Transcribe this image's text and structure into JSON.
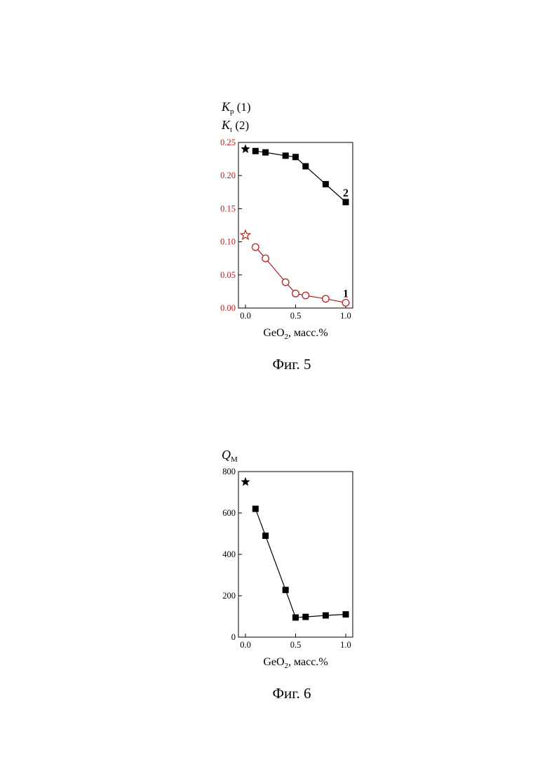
{
  "chart_data": [
    {
      "type": "line",
      "figure_caption": "Фиг. 5",
      "ylabel_lines": [
        {
          "sym": "K",
          "sub": "p",
          "suffix": " (1)"
        },
        {
          "sym": "K",
          "sub": "t",
          "suffix": " (2)"
        }
      ],
      "xlabel": {
        "pre": "GeO",
        "sub": "2",
        "post": ", масс.%"
      },
      "xlim": [
        -0.07,
        1.07
      ],
      "ylim": [
        0,
        0.25
      ],
      "xticks": [
        "0.0",
        "0.5",
        "1.0"
      ],
      "xtick_values": [
        0,
        0.5,
        1.0
      ],
      "yticks": [
        "0.00",
        "0.05",
        "0.10",
        "0.15",
        "0.20",
        "0.25"
      ],
      "ytick_values": [
        0,
        0.05,
        0.1,
        0.15,
        0.2,
        0.25
      ],
      "ytick_color": "#b22222",
      "series": [
        {
          "label": "2",
          "color": "#000000",
          "marker": "filled-square",
          "x": [
            0.1,
            0.2,
            0.4,
            0.5,
            0.6,
            0.8,
            1.0
          ],
          "y": [
            0.237,
            0.235,
            0.23,
            0.228,
            0.214,
            0.187,
            0.16
          ],
          "reference_point": {
            "x": 0.0,
            "y": 0.24,
            "marker": "filled-star"
          }
        },
        {
          "label": "1",
          "color": "#b22222",
          "marker": "open-circle",
          "x": [
            0.1,
            0.2,
            0.4,
            0.5,
            0.6,
            0.8,
            1.0
          ],
          "y": [
            0.092,
            0.075,
            0.039,
            0.022,
            0.019,
            0.014,
            0.008
          ],
          "reference_point": {
            "x": 0.0,
            "y": 0.11,
            "marker": "open-star"
          }
        }
      ]
    },
    {
      "type": "line",
      "figure_caption": "Фиг. 6",
      "ylabel_lines": [
        {
          "sym": "Q",
          "sub": "M",
          "suffix": ""
        }
      ],
      "xlabel": {
        "pre": "GeO",
        "sub": "2",
        "post": ", масс.%"
      },
      "xlim": [
        -0.07,
        1.07
      ],
      "ylim": [
        0,
        800
      ],
      "xticks": [
        "0.0",
        "0.5",
        "1.0"
      ],
      "xtick_values": [
        0,
        0.5,
        1.0
      ],
      "yticks": [
        "0",
        "200",
        "400",
        "600",
        "800"
      ],
      "ytick_values": [
        0,
        200,
        400,
        600,
        800
      ],
      "ytick_color": "#000000",
      "series": [
        {
          "color": "#000000",
          "marker": "filled-square",
          "x": [
            0.1,
            0.2,
            0.4,
            0.5,
            0.6,
            0.8,
            1.0
          ],
          "y": [
            620,
            490,
            228,
            95,
            98,
            105,
            110
          ],
          "reference_point": {
            "x": 0.0,
            "y": 750,
            "marker": "filled-star"
          }
        }
      ]
    }
  ]
}
